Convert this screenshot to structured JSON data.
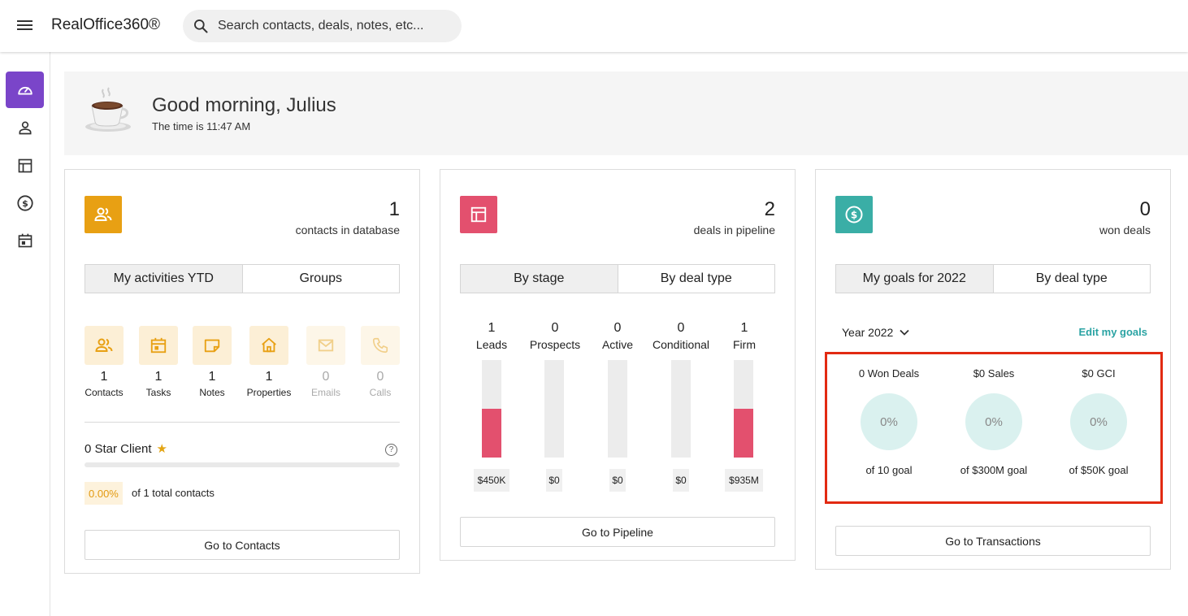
{
  "app": {
    "title": "RealOffice360®"
  },
  "search": {
    "placeholder": "Search contacts, deals, notes, etc..."
  },
  "sidebar": {
    "items": [
      {
        "icon": "dashboard-icon",
        "active": true
      },
      {
        "icon": "person-icon",
        "active": false
      },
      {
        "icon": "table-icon",
        "active": false
      },
      {
        "icon": "dollar-icon",
        "active": false
      },
      {
        "icon": "calendar-icon",
        "active": false
      }
    ]
  },
  "greeting": {
    "title": "Good morning, Julius",
    "time": "The time is 11:47 AM"
  },
  "colors": {
    "accent_purple": "#7a45c9",
    "contacts_orange": "#e8a013",
    "pipeline_pink": "#e3506e",
    "transactions_teal": "#3aaea6",
    "highlight_red": "#e22a12"
  },
  "contacts_card": {
    "count": "1",
    "count_label": "contacts in database",
    "tabs": [
      "My activities YTD",
      "Groups"
    ],
    "activities": [
      {
        "label": "Contacts",
        "value": "1",
        "icon": "contacts-icon"
      },
      {
        "label": "Tasks",
        "value": "1",
        "icon": "calendar-icon"
      },
      {
        "label": "Notes",
        "value": "1",
        "icon": "note-icon"
      },
      {
        "label": "Properties",
        "value": "1",
        "icon": "home-icon"
      },
      {
        "label": "Emails",
        "value": "0",
        "icon": "mail-icon"
      },
      {
        "label": "Calls",
        "value": "0",
        "icon": "phone-icon"
      }
    ],
    "star_title": "0 Star Client",
    "star_percent_label": "0.00%",
    "star_progress": 0,
    "star_total": "of 1 total contacts",
    "button": "Go to Contacts"
  },
  "pipeline_card": {
    "count": "2",
    "count_label": "deals in pipeline",
    "tabs": [
      "By stage",
      "By deal type"
    ],
    "stages": [
      {
        "label": "Leads",
        "count": "1",
        "value": "$450K",
        "fill": 0.5
      },
      {
        "label": "Prospects",
        "count": "0",
        "value": "$0",
        "fill": 0
      },
      {
        "label": "Active",
        "count": "0",
        "value": "$0",
        "fill": 0
      },
      {
        "label": "Conditional",
        "count": "0",
        "value": "$0",
        "fill": 0
      },
      {
        "label": "Firm",
        "count": "1",
        "value": "$935M",
        "fill": 0.5
      }
    ],
    "button": "Go to Pipeline"
  },
  "transactions_card": {
    "count": "0",
    "count_label": "won deals",
    "tabs": [
      "My goals for 2022",
      "By deal type"
    ],
    "year_select": "Year 2022",
    "edit_link": "Edit my goals",
    "goals": [
      {
        "title": "0 Won Deals",
        "percent": "0%",
        "goal": "of 10 goal"
      },
      {
        "title": "$0 Sales",
        "percent": "0%",
        "goal": "of $300M goal"
      },
      {
        "title": "$0 GCI",
        "percent": "0%",
        "goal": "of $50K goal"
      }
    ],
    "button": "Go to Transactions"
  }
}
